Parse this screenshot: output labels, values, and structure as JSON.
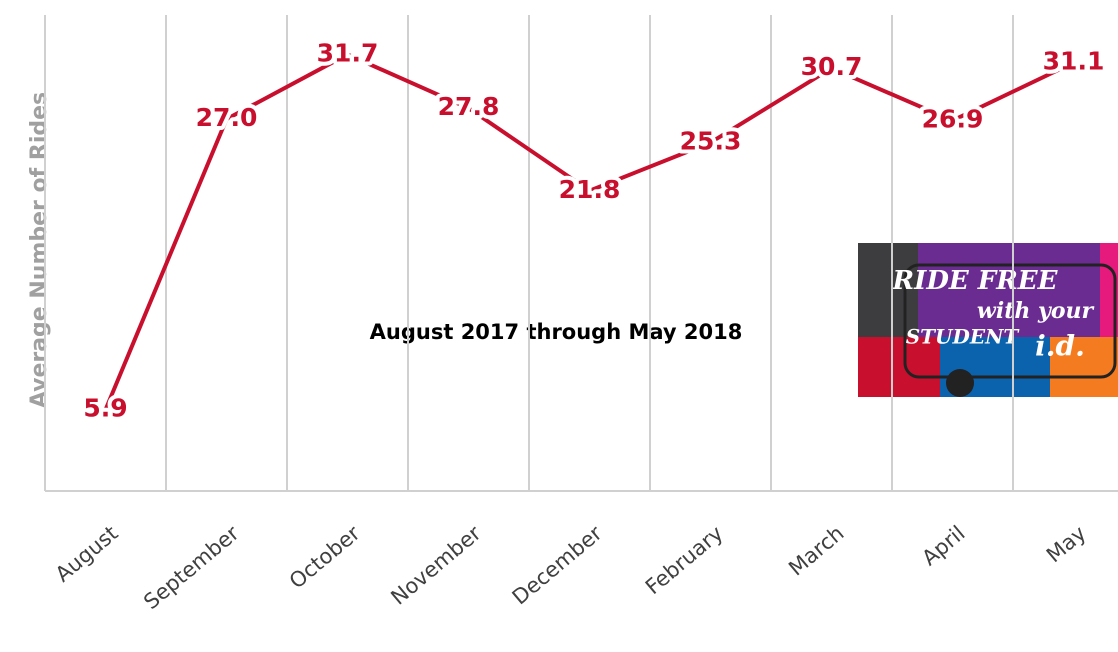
{
  "chart_data": {
    "type": "line",
    "y_label": "Average Number of Rides",
    "annotation": "August 2017 through May 2018",
    "logo_text": [
      "RIDE FREE",
      "with your",
      "STUDENT",
      "i.d."
    ],
    "categories": [
      "August",
      "September",
      "October",
      "November",
      "December",
      "February",
      "March",
      "April",
      "May"
    ],
    "values": [
      5.9,
      27.0,
      31.7,
      27.8,
      21.8,
      25.3,
      30.7,
      26.9,
      31.1
    ],
    "value_labels": [
      "5.9",
      "27.0",
      "31.7",
      "27.8",
      "21.8",
      "25.3",
      "30.7",
      "26.9",
      "31.1"
    ],
    "color": "#c8102e",
    "ylim": [
      0,
      35
    ],
    "grid": true
  }
}
